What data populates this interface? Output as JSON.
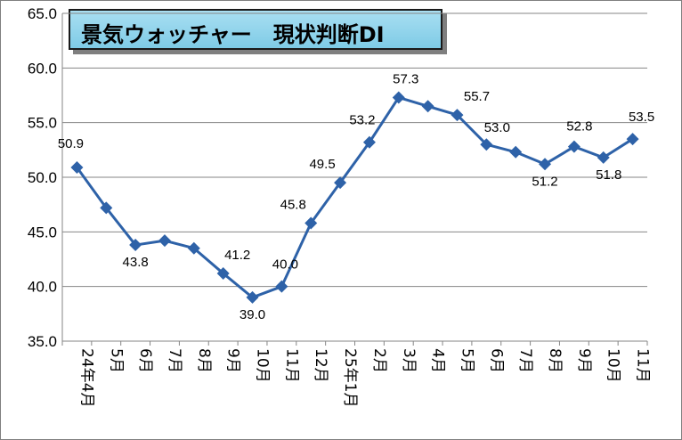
{
  "chart_data": {
    "type": "line",
    "title": "景気ウォッチャー　現状判断DI",
    "xlabel": "",
    "ylabel": "",
    "ylim": [
      35.0,
      65.0
    ],
    "yticks": [
      "35.0",
      "40.0",
      "45.0",
      "50.0",
      "55.0",
      "60.0",
      "65.0"
    ],
    "ytick_values": [
      35,
      40,
      45,
      50,
      55,
      60,
      65
    ],
    "categories": [
      "24年4月",
      "5月",
      "6月",
      "7月",
      "8月",
      "9月",
      "10月",
      "11月",
      "12月",
      "25年1月",
      "2月",
      "3月",
      "4月",
      "5月",
      "6月",
      "7月",
      "8月",
      "9月",
      "10月",
      "11月"
    ],
    "series": [
      {
        "values": [
          50.9,
          47.2,
          43.8,
          44.2,
          43.5,
          41.2,
          39.0,
          40.0,
          45.8,
          49.5,
          53.2,
          57.3,
          56.5,
          55.7,
          53.0,
          52.3,
          51.2,
          52.8,
          51.8,
          53.5
        ],
        "labels": [
          "50.9",
          "",
          "43.8",
          "",
          "",
          "41.2",
          "39.0",
          "40.0",
          "45.8",
          "49.5",
          "53.2",
          "57.3",
          "",
          "55.7",
          "53.0",
          "",
          "51.2",
          "52.8",
          "51.8",
          "53.5"
        ],
        "color": "#2e62a8"
      }
    ],
    "grid": true,
    "legend": "none",
    "marker": "diamond"
  },
  "colors": {
    "line": "#2e62a8",
    "grid": "#868686",
    "title_bg": "#8fd3ea"
  }
}
